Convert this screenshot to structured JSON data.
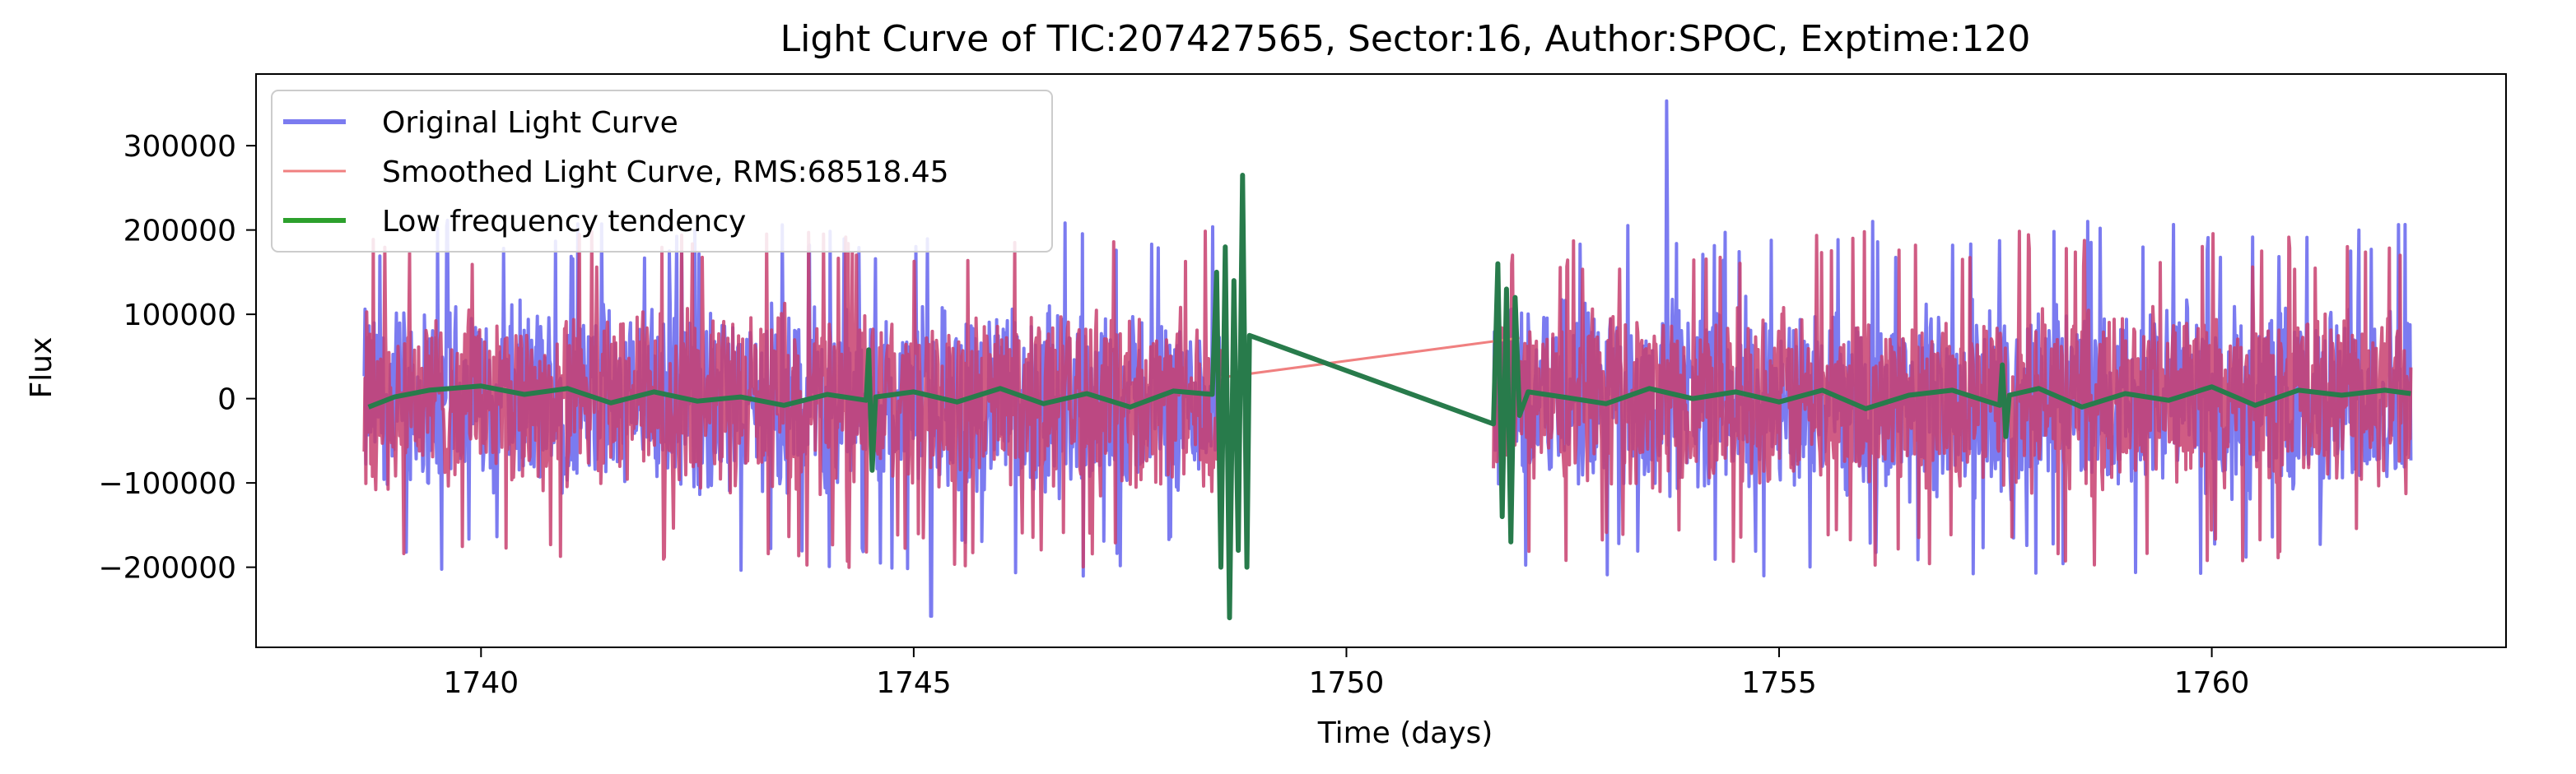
{
  "chart_data": {
    "type": "line",
    "title": "Light Curve of TIC:207427565, Sector:16, Author:SPOC, Exptime:120",
    "xlabel": "Time (days)",
    "ylabel": "Flux",
    "xlim": [
      1737.4,
      1763.4
    ],
    "ylim": [
      -295000,
      385000
    ],
    "x_ticks": [
      1740,
      1745,
      1750,
      1755,
      1760
    ],
    "x_tick_labels": [
      "1740",
      "1745",
      "1750",
      "1755",
      "1760"
    ],
    "y_ticks": [
      -200000,
      -100000,
      0,
      100000,
      200000,
      300000
    ],
    "y_tick_labels": [
      "−200000",
      "−100000",
      "0",
      "100000",
      "200000",
      "300000"
    ],
    "grid": false,
    "legend_position": "upper-left",
    "segments": [
      [
        1738.65,
        1748.55
      ],
      [
        1751.7,
        1762.3
      ]
    ],
    "series": [
      {
        "name": "Original Light Curve",
        "color": "#7b7bf0",
        "style": "noise-band",
        "amplitude": 125000,
        "spike_max": 353000,
        "spike_min": -258000
      },
      {
        "name": "Smoothed Light Curve, RMS:68518.45",
        "color": "#f08080",
        "style": "noise-band",
        "amplitude": 118000,
        "gap_bridge": [
          [
            1748.55,
            25000
          ],
          [
            1752.0,
            72000
          ]
        ]
      },
      {
        "name": "Low frequency tendency",
        "color": "#2ca02c",
        "style": "trend",
        "baseline": 3000,
        "points": [
          [
            1738.7,
            -10000
          ],
          [
            1739.0,
            2000
          ],
          [
            1739.4,
            10000
          ],
          [
            1740.0,
            15000
          ],
          [
            1740.5,
            5000
          ],
          [
            1741.0,
            12000
          ],
          [
            1741.5,
            -5000
          ],
          [
            1742.0,
            8000
          ],
          [
            1742.5,
            -3000
          ],
          [
            1743.0,
            2000
          ],
          [
            1743.5,
            -8000
          ],
          [
            1744.0,
            5000
          ],
          [
            1744.45,
            -2000
          ],
          [
            1744.48,
            58000
          ],
          [
            1744.52,
            -85000
          ],
          [
            1744.56,
            2000
          ],
          [
            1745.0,
            8000
          ],
          [
            1745.5,
            -4000
          ],
          [
            1746.0,
            12000
          ],
          [
            1746.5,
            -6000
          ],
          [
            1747.0,
            6000
          ],
          [
            1747.5,
            -10000
          ],
          [
            1748.0,
            9000
          ],
          [
            1748.45,
            5000
          ],
          [
            1748.5,
            150000
          ],
          [
            1748.55,
            -200000
          ],
          [
            1748.6,
            180000
          ],
          [
            1748.65,
            -260000
          ],
          [
            1748.7,
            140000
          ],
          [
            1748.75,
            -180000
          ],
          [
            1748.8,
            265000
          ],
          [
            1748.85,
            -200000
          ],
          [
            1748.88,
            75000
          ],
          [
            1751.7,
            -30000
          ],
          [
            1751.75,
            160000
          ],
          [
            1751.8,
            -140000
          ],
          [
            1751.85,
            130000
          ],
          [
            1751.9,
            -170000
          ],
          [
            1751.95,
            120000
          ],
          [
            1752.0,
            -20000
          ],
          [
            1752.1,
            8000
          ],
          [
            1752.5,
            2000
          ],
          [
            1753.0,
            -6000
          ],
          [
            1753.5,
            12000
          ],
          [
            1754.0,
            0
          ],
          [
            1754.5,
            8000
          ],
          [
            1755.0,
            -4000
          ],
          [
            1755.5,
            10000
          ],
          [
            1756.0,
            -12000
          ],
          [
            1756.5,
            4000
          ],
          [
            1757.0,
            10000
          ],
          [
            1757.55,
            -8000
          ],
          [
            1757.58,
            40000
          ],
          [
            1757.62,
            -45000
          ],
          [
            1757.66,
            4000
          ],
          [
            1758.0,
            12000
          ],
          [
            1758.5,
            -10000
          ],
          [
            1759.0,
            6000
          ],
          [
            1759.5,
            -2000
          ],
          [
            1760.0,
            14000
          ],
          [
            1760.5,
            -8000
          ],
          [
            1761.0,
            10000
          ],
          [
            1761.5,
            4000
          ],
          [
            1762.0,
            10000
          ],
          [
            1762.3,
            6000
          ]
        ]
      }
    ]
  }
}
